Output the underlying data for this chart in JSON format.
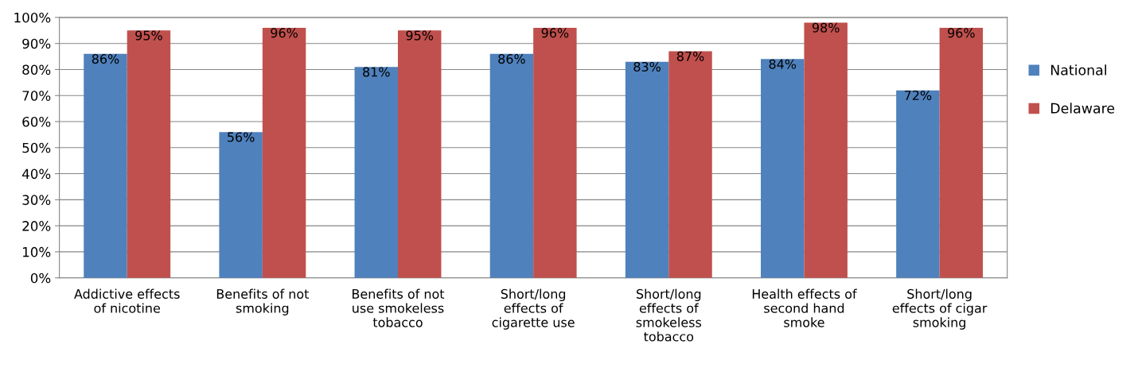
{
  "chart_data": {
    "type": "bar",
    "categories": [
      "Addictive effects\nof nicotine",
      "Benefits of not\nsmoking",
      "Benefits of not\nuse smokeless\ntobacco",
      "Short/long\neffects of\ncigarette use",
      "Short/long\neffects of\nsmokeless\ntobacco",
      "Health effects of\nsecond hand\nsmoke",
      "Short/long\neffects of cigar\nsmoking"
    ],
    "series": [
      {
        "name": "National",
        "color": "#4f81bd",
        "values": [
          86,
          56,
          81,
          86,
          83,
          84,
          72
        ],
        "value_labels": [
          "86%",
          "56%",
          "81%",
          "86%",
          "83%",
          "84%",
          "72%"
        ]
      },
      {
        "name": "Delaware",
        "color": "#c0504d",
        "values": [
          95,
          96,
          95,
          96,
          87,
          98,
          96
        ],
        "value_labels": [
          "95%",
          "96%",
          "95%",
          "96%",
          "87%",
          "98%",
          "96%"
        ]
      }
    ],
    "ylim": [
      0,
      100
    ],
    "yticks": [
      {
        "value": 0,
        "label": "0%"
      },
      {
        "value": 10,
        "label": "10%"
      },
      {
        "value": 20,
        "label": "20%"
      },
      {
        "value": 30,
        "label": "30%"
      },
      {
        "value": 40,
        "label": "40%"
      },
      {
        "value": 50,
        "label": "50%"
      },
      {
        "value": 60,
        "label": "60%"
      },
      {
        "value": 70,
        "label": "70%"
      },
      {
        "value": 80,
        "label": "80%"
      },
      {
        "value": 90,
        "label": "90%"
      },
      {
        "value": 100,
        "label": "100%"
      }
    ],
    "grid": "y",
    "legend": "right"
  }
}
